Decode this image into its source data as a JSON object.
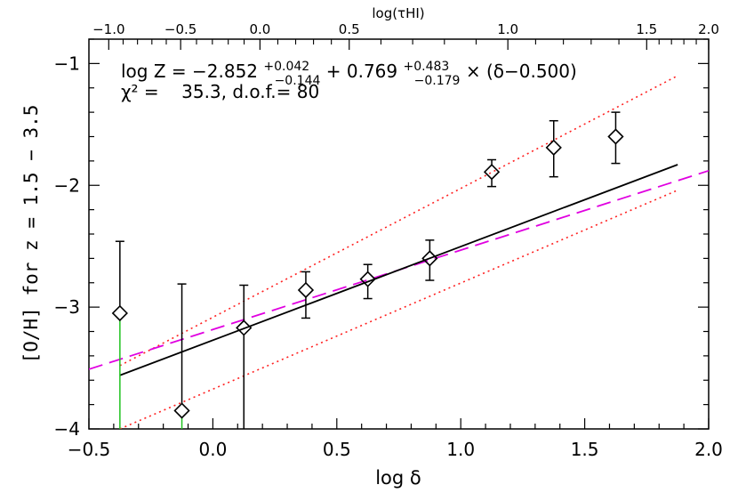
{
  "chart_data": {
    "type": "scatter",
    "xlabel": "log δ",
    "ylabel": "[O/H] for z = 1.5 − 3.5",
    "top_xlabel": "log(τHI)",
    "xlim": [
      -0.5,
      2.0
    ],
    "ylim": [
      -4.0,
      -0.8
    ],
    "x_ticks": [
      "−0.5",
      "0.0",
      "0.5",
      "1.0",
      "1.5",
      "2.0"
    ],
    "y_ticks": [
      "−1",
      "−2",
      "−3",
      "−4"
    ],
    "top_x_ticks": [
      {
        "label": "−1.0",
        "x": -0.42
      },
      {
        "label": "−0.5",
        "x": -0.13
      },
      {
        "label": "0.0",
        "x": 0.19
      },
      {
        "label": "0.5",
        "x": 0.55
      },
      {
        "label": "1.0",
        "x": 1.19
      },
      {
        "label": "1.5",
        "x": 1.75
      },
      {
        "label": "2.0",
        "x": 2.0
      }
    ],
    "points": [
      {
        "x": -0.375,
        "y": -3.05,
        "lo": -4.0,
        "hi": -2.46,
        "color": "#1fc21f"
      },
      {
        "x": -0.125,
        "y": -3.85,
        "lo": -4.0,
        "hi": -2.81,
        "color": "#1fc21f"
      },
      {
        "x": 0.125,
        "y": -3.17,
        "lo": -4.0,
        "hi": -2.82,
        "color": "#000000"
      },
      {
        "x": 0.375,
        "y": -2.86,
        "lo": -3.09,
        "hi": -2.71,
        "color": "#000000"
      },
      {
        "x": 0.625,
        "y": -2.77,
        "lo": -2.93,
        "hi": -2.65,
        "color": "#000000"
      },
      {
        "x": 0.875,
        "y": -2.6,
        "lo": -2.78,
        "hi": -2.45,
        "color": "#000000"
      },
      {
        "x": 1.125,
        "y": -1.89,
        "lo": -2.01,
        "hi": -1.79,
        "color": "#000000"
      },
      {
        "x": 1.375,
        "y": -1.69,
        "lo": -1.93,
        "hi": -1.47,
        "color": "#000000"
      },
      {
        "x": 1.625,
        "y": -1.6,
        "lo": -1.82,
        "hi": -1.4,
        "color": "#000000"
      }
    ],
    "fit_line": {
      "x": [
        -0.375,
        1.875
      ],
      "y": [
        -3.56,
        -1.83
      ],
      "color": "#000000"
    },
    "dashed_line": {
      "x": [
        -0.5,
        2.0
      ],
      "y": [
        -3.51,
        -1.88
      ],
      "color": "#e000e0"
    },
    "dotted_upper": {
      "x": [
        -0.375,
        1.875
      ],
      "y": [
        -3.48,
        -1.1
      ],
      "color": "#ff2020"
    },
    "dotted_lower": {
      "x": [
        -0.375,
        1.875
      ],
      "y": [
        -4.0,
        -2.04
      ],
      "color": "#ff2020"
    },
    "annotation": {
      "line1_prefix": "log Z = −2.852",
      "line1_sup1": "+0.042",
      "line1_sub1": "−0.144",
      "line1_mid": " + 0.769",
      "line1_sup2": "+0.483",
      "line1_sub2": "−0.179",
      "line1_suffix": " × (δ−0.500)",
      "line2": "χ² =    35.3, d.o.f.= 80"
    }
  }
}
